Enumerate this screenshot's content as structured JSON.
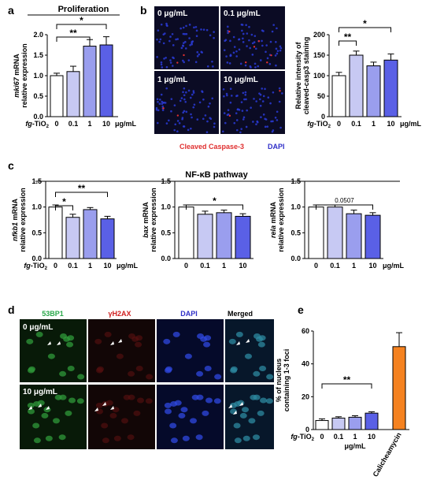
{
  "panels": {
    "a": "a",
    "b": "b",
    "c": "c",
    "d": "d",
    "e": "e"
  },
  "colors": {
    "c0": "#ffffff",
    "c01": "#c7c9f3",
    "c1": "#9a9eee",
    "c10": "#5a60e6",
    "calich": "#f58220",
    "caspase_text": "#e03030",
    "dapi_text": "#3030c8",
    "bp53_text": "#2aa84a",
    "h2ax_text": "#d02020"
  },
  "chart_data": [
    {
      "id": "a",
      "type": "bar",
      "title": "Proliferation",
      "ylabel_italic": "mki67",
      "ylabel_rest": " mRNA",
      "ylabel2": "relative expression",
      "ylim": [
        0,
        2.0
      ],
      "yticks": [
        "0.0",
        "0.5",
        "1.0",
        "1.5",
        "2.0"
      ],
      "categories": [
        "0",
        "0.1",
        "1",
        "10"
      ],
      "values": [
        1.0,
        1.1,
        1.72,
        1.75
      ],
      "errors": [
        0.06,
        0.13,
        0.16,
        0.2
      ],
      "unit": "μg/mL",
      "xprefix_italic": "fg",
      "xprefix_rest": "-TiO",
      "xprefix_sub": "2",
      "sig": [
        {
          "from": 0,
          "to": 2,
          "label": "**"
        },
        {
          "from": 0,
          "to": 3,
          "label": "*"
        }
      ]
    },
    {
      "id": "b",
      "type": "bar",
      "ylabel1": "Relative intensity of",
      "ylabel2": "cleaved-casp3 staining",
      "ylim": [
        0,
        200
      ],
      "yticks": [
        "0",
        "50",
        "100",
        "150",
        "200"
      ],
      "categories": [
        "0",
        "0.1",
        "1",
        "10"
      ],
      "values": [
        100,
        150,
        124,
        138
      ],
      "errors": [
        8,
        10,
        9,
        15
      ],
      "unit": "μg/mL",
      "xprefix_italic": "fg",
      "xprefix_rest": "-TiO",
      "xprefix_sub": "2",
      "sig": [
        {
          "from": 0,
          "to": 1,
          "label": "**"
        },
        {
          "from": 0,
          "to": 3,
          "label": "*"
        }
      ]
    },
    {
      "id": "c1",
      "type": "bar",
      "ylabel_italic": "nfkb1",
      "ylabel_rest": " mRNA",
      "ylabel2": "relative expression",
      "ylim": [
        0,
        1.5
      ],
      "yticks": [
        "0.0",
        "0.5",
        "1.0",
        "1.5"
      ],
      "categories": [
        "0",
        "0.1",
        "1",
        "10"
      ],
      "values": [
        1.0,
        0.8,
        0.95,
        0.77
      ],
      "errors": [
        0.04,
        0.06,
        0.04,
        0.05
      ],
      "unit": "μg/mL",
      "xprefix_italic": "fg",
      "xprefix_rest": "-TiO",
      "xprefix_sub": "2",
      "sig": [
        {
          "from": 0,
          "to": 1,
          "label": "*"
        },
        {
          "from": 0,
          "to": 3,
          "label": "**"
        }
      ]
    },
    {
      "id": "c2",
      "type": "bar",
      "ylabel_italic": "bax",
      "ylabel_rest": " mRNA",
      "ylabel2": "relative expression",
      "ylim": [
        0,
        1.5
      ],
      "yticks": [
        "0.0",
        "0.5",
        "1.0",
        "1.5"
      ],
      "categories": [
        "0",
        "0.1",
        "1",
        "10"
      ],
      "values": [
        1.0,
        0.86,
        0.89,
        0.82
      ],
      "errors": [
        0.04,
        0.06,
        0.05,
        0.05
      ],
      "unit": "",
      "sig": [
        {
          "from": 0,
          "to": 3,
          "label": "*"
        }
      ]
    },
    {
      "id": "c3",
      "type": "bar",
      "ylabel_italic": "rela",
      "ylabel_rest": " mRNA",
      "ylabel2": "relative expression",
      "ylim": [
        0,
        1.5
      ],
      "yticks": [
        "0.0",
        "0.5",
        "1.0",
        "1.5"
      ],
      "categories": [
        "0",
        "0.1",
        "1",
        "10"
      ],
      "values": [
        1.0,
        1.0,
        0.87,
        0.84
      ],
      "errors": [
        0.04,
        0.04,
        0.07,
        0.05
      ],
      "unit": "μg/mL",
      "sig": [
        {
          "from": 0,
          "to": 3,
          "label": "0.0507"
        }
      ]
    },
    {
      "id": "e",
      "type": "bar",
      "ylabel1": "% of nucleus",
      "ylabel2": "containing 1-3 foci",
      "ylim": [
        0,
        60
      ],
      "yticks": [
        "0",
        "20",
        "40",
        "60"
      ],
      "categories": [
        "0",
        "0.1",
        "1",
        "10",
        "Calicheamycin"
      ],
      "values": [
        5.5,
        7.0,
        7.5,
        10.0,
        50.5
      ],
      "errors": [
        1.0,
        0.8,
        0.9,
        0.8,
        8.5
      ],
      "unit": "μg/mL",
      "xprefix_italic": "fg",
      "xprefix_rest": "-TiO",
      "xprefix_sub": "2",
      "sig": [
        {
          "from": 0,
          "to": 3,
          "label": "**"
        }
      ]
    }
  ],
  "panel_b_images": {
    "labels": [
      "0 μg/mL",
      "0.1 μg/mL",
      "1 μg/mL",
      "10 μg/mL"
    ],
    "legend_caspase": "Cleaved Caspase-3",
    "legend_dapi": "DAPI"
  },
  "panel_c_title": "NF-κB pathway",
  "panel_d": {
    "columns": [
      "53BP1",
      "γH2AX",
      "DAPI",
      "Merged"
    ],
    "rows": [
      "0 μg/mL",
      "10 μg/mL"
    ]
  }
}
